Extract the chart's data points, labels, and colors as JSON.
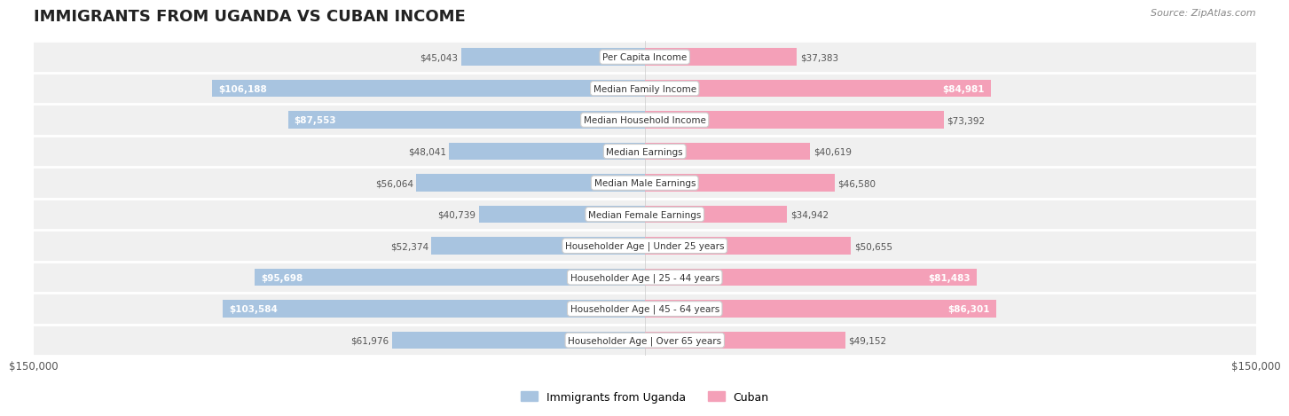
{
  "title": "IMMIGRANTS FROM UGANDA VS CUBAN INCOME",
  "source": "Source: ZipAtlas.com",
  "categories": [
    "Per Capita Income",
    "Median Family Income",
    "Median Household Income",
    "Median Earnings",
    "Median Male Earnings",
    "Median Female Earnings",
    "Householder Age | Under 25 years",
    "Householder Age | 25 - 44 years",
    "Householder Age | 45 - 64 years",
    "Householder Age | Over 65 years"
  ],
  "uganda_values": [
    45043,
    106188,
    87553,
    48041,
    56064,
    40739,
    52374,
    95698,
    103584,
    61976
  ],
  "cuban_values": [
    37383,
    84981,
    73392,
    40619,
    46580,
    34942,
    50655,
    81483,
    86301,
    49152
  ],
  "uganda_labels": [
    "$45,043",
    "$106,188",
    "$87,553",
    "$48,041",
    "$56,064",
    "$40,739",
    "$52,374",
    "$95,698",
    "$103,584",
    "$61,976"
  ],
  "cuban_labels": [
    "$37,383",
    "$84,981",
    "$73,392",
    "$40,619",
    "$46,580",
    "$34,942",
    "$50,655",
    "$81,483",
    "$86,301",
    "$49,152"
  ],
  "uganda_color": "#a8c4e0",
  "cuban_color": "#f4a0b8",
  "uganda_color_dark": "#6fa8d4",
  "cuban_color_dark": "#f06090",
  "max_value": 150000,
  "x_tick_label_left": "$150,000",
  "x_tick_label_right": "$150,000",
  "legend_uganda": "Immigrants from Uganda",
  "legend_cuban": "Cuban",
  "background_row_color": "#f0f0f0",
  "background_color": "#ffffff",
  "label_threshold": 80000
}
